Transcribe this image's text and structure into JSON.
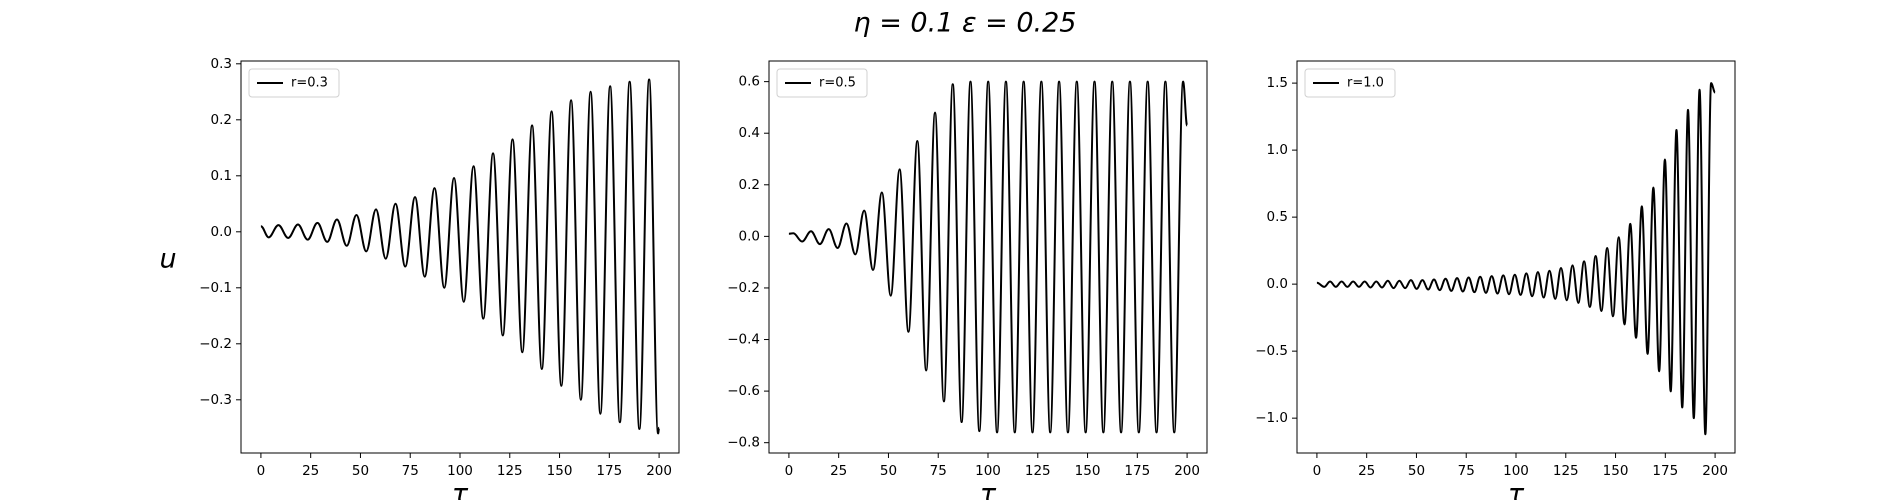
{
  "title": "η = 0.1  ε = 0.25",
  "chart_data": [
    {
      "type": "line",
      "x_label": "τ",
      "y_label": "u",
      "x": [
        0,
        3.9,
        8.8,
        13.7,
        18.6,
        23.5,
        28.4,
        33.3,
        38.2,
        43.1,
        48,
        52.9,
        57.8,
        62.7,
        67.6,
        72.5,
        77.4,
        82.3,
        87.2,
        92.1,
        97,
        101.9,
        106.8,
        111.7,
        116.6,
        121.5,
        126.4,
        131.3,
        136.2,
        141.1,
        146,
        150.9,
        155.8,
        160.7,
        165.6,
        170.5,
        175.4,
        180.3,
        185.2,
        190.1,
        195,
        199.5,
        200
      ],
      "series": [
        {
          "name": "r=0.3",
          "color": "#000000",
          "values": [
            0.01,
            -0.01,
            0.012,
            -0.011,
            0.013,
            -0.014,
            0.016,
            -0.018,
            0.022,
            -0.025,
            0.03,
            -0.035,
            0.04,
            -0.048,
            0.05,
            -0.062,
            0.062,
            -0.08,
            0.078,
            -0.1,
            0.096,
            -0.125,
            0.117,
            -0.155,
            0.14,
            -0.185,
            0.165,
            -0.215,
            0.19,
            -0.245,
            0.215,
            -0.275,
            0.235,
            -0.3,
            0.25,
            -0.325,
            0.26,
            -0.34,
            0.268,
            -0.352,
            0.272,
            -0.36,
            -0.35
          ]
        }
      ],
      "xlim": [
        -10,
        210
      ],
      "ylim": [
        -0.395,
        0.305
      ],
      "xticks": [
        0,
        25,
        50,
        75,
        100,
        125,
        150,
        175,
        200
      ],
      "yticks": [
        {
          "value": -0.3,
          "label": "−0.3"
        },
        {
          "value": -0.2,
          "label": "−0.2"
        },
        {
          "value": -0.1,
          "label": "−0.1"
        },
        {
          "value": 0,
          "label": "0.0"
        },
        0.1,
        0.2,
        0.3
      ],
      "legend": "upper left"
    },
    {
      "type": "line",
      "x_label": "τ",
      "x": [
        0,
        2.2,
        6.65,
        11.1,
        15.55,
        20,
        24.45,
        28.9,
        33.35,
        37.8,
        42.25,
        46.7,
        51.15,
        55.6,
        60.05,
        64.5,
        68.95,
        73.4,
        77.85,
        82.3,
        86.75,
        91.2,
        95.65,
        100.1,
        104.55,
        109,
        113.45,
        117.9,
        122.35,
        126.8,
        131.25,
        135.7,
        140.15,
        144.6,
        149.05,
        153.5,
        157.95,
        162.4,
        166.85,
        171.3,
        175.75,
        180.2,
        184.65,
        189.1,
        193.55,
        198,
        200
      ],
      "series": [
        {
          "name": "r=0.5",
          "color": "#000000",
          "values": [
            0.01,
            0.012,
            -0.02,
            0.02,
            -0.03,
            0.028,
            -0.045,
            0.05,
            -0.07,
            0.1,
            -0.13,
            0.17,
            -0.23,
            0.26,
            -0.37,
            0.37,
            -0.52,
            0.48,
            -0.64,
            0.59,
            -0.72,
            0.6,
            -0.755,
            0.6,
            -0.76,
            0.6,
            -0.76,
            0.6,
            -0.76,
            0.6,
            -0.76,
            0.6,
            -0.76,
            0.6,
            -0.76,
            0.6,
            -0.76,
            0.6,
            -0.76,
            0.6,
            -0.76,
            0.6,
            -0.76,
            0.6,
            -0.76,
            0.6,
            0.43
          ]
        }
      ],
      "xlim": [
        -10,
        210
      ],
      "ylim": [
        -0.84,
        0.68
      ],
      "xticks": [
        0,
        25,
        50,
        75,
        100,
        125,
        150,
        175,
        200
      ],
      "yticks": [
        {
          "value": -0.8,
          "label": "−0.8"
        },
        {
          "value": -0.6,
          "label": "−0.6"
        },
        {
          "value": -0.4,
          "label": "−0.4"
        },
        {
          "value": -0.2,
          "label": "−0.2"
        },
        {
          "value": 0,
          "label": "0.0"
        },
        0.2,
        0.4,
        0.6
      ],
      "legend": "upper left"
    },
    {
      "type": "line",
      "x_label": "τ",
      "x": [
        0,
        3.7,
        6.6,
        9.5,
        12.4,
        15.3,
        18.2,
        21.1,
        24,
        26.9,
        29.8,
        32.7,
        35.6,
        38.5,
        41.4,
        44.3,
        47.2,
        50.1,
        53,
        55.9,
        58.8,
        61.7,
        64.6,
        67.5,
        70.4,
        73.3,
        76.2,
        79.1,
        82,
        84.9,
        87.8,
        90.7,
        93.6,
        96.5,
        99.4,
        102.3,
        105.2,
        108.1,
        111,
        113.9,
        116.8,
        119.7,
        122.6,
        125.5,
        128.4,
        131.3,
        134.2,
        137.1,
        140,
        142.9,
        145.8,
        148.7,
        151.6,
        154.5,
        157.4,
        160.3,
        163.2,
        166.1,
        169,
        171.9,
        174.8,
        177.7,
        180.6,
        183.5,
        186.4,
        189.3,
        192.2,
        195.1,
        198,
        200
      ],
      "series": [
        {
          "name": "r=1.0",
          "color": "#000000",
          "values": [
            0.01,
            -0.02,
            0.02,
            -0.02,
            0.02,
            -0.02,
            0.02,
            -0.02,
            0.02,
            -0.025,
            0.02,
            -0.025,
            0.025,
            -0.03,
            0.025,
            -0.03,
            0.03,
            -0.035,
            0.03,
            -0.04,
            0.035,
            -0.045,
            0.04,
            -0.05,
            0.045,
            -0.055,
            0.05,
            -0.06,
            0.055,
            -0.065,
            0.06,
            -0.07,
            0.065,
            -0.075,
            0.07,
            -0.08,
            0.08,
            -0.09,
            0.09,
            -0.1,
            0.1,
            -0.11,
            0.12,
            -0.12,
            0.14,
            -0.14,
            0.17,
            -0.17,
            0.21,
            -0.2,
            0.27,
            -0.24,
            0.35,
            -0.3,
            0.45,
            -0.4,
            0.58,
            -0.52,
            0.72,
            -0.65,
            0.93,
            -0.8,
            1.15,
            -0.92,
            1.3,
            -1.0,
            1.45,
            -1.12,
            1.5,
            1.43
          ]
        }
      ],
      "xlim": [
        -10,
        210
      ],
      "ylim": [
        -1.26,
        1.665
      ],
      "xticks": [
        0,
        25,
        50,
        75,
        100,
        125,
        150,
        175,
        200
      ],
      "yticks": [
        {
          "value": -1.0,
          "label": "−1.0"
        },
        {
          "value": -0.5,
          "label": "−0.5"
        },
        {
          "value": 0,
          "label": "0.0"
        },
        0.5,
        {
          "value": 1.0,
          "label": "1.0"
        },
        {
          "value": 1.5,
          "label": "1.5"
        }
      ],
      "legend": "upper left"
    }
  ]
}
